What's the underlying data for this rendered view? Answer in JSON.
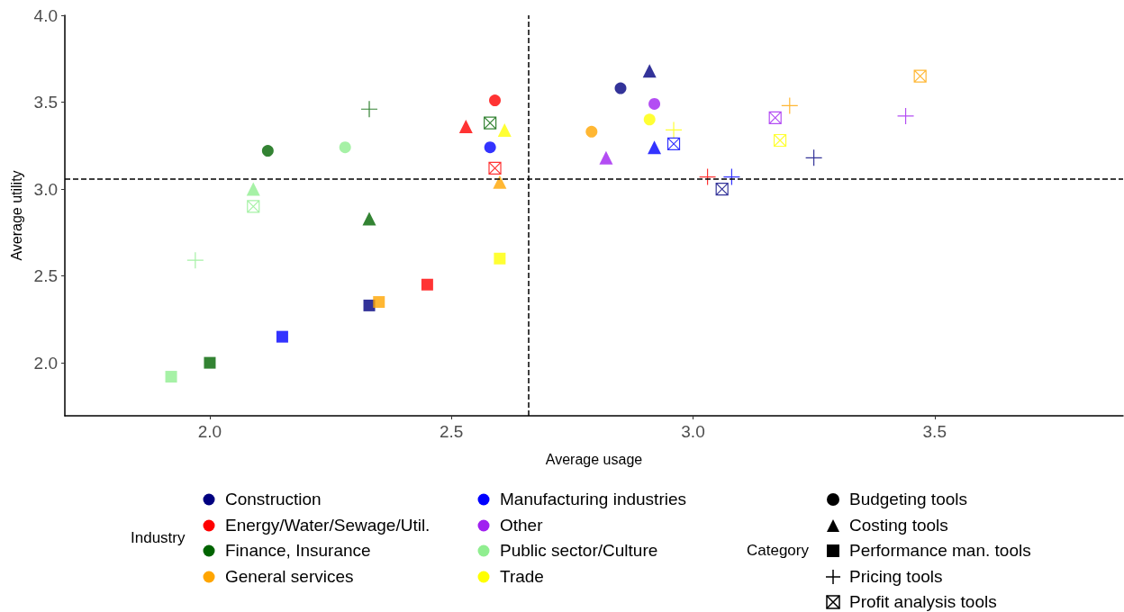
{
  "chart_data": {
    "type": "scatter",
    "xlabel": "Average usage",
    "ylabel": "Average utility",
    "xlim": [
      1.7,
      3.89
    ],
    "ylim": [
      1.695,
      4.0
    ],
    "xticks": [
      {
        "value": 2,
        "label": "2.0"
      },
      {
        "value": 2.5,
        "label": "2.5"
      },
      {
        "value": 3,
        "label": "3.0"
      },
      {
        "value": 3.5,
        "label": "3.5"
      }
    ],
    "yticks": [
      {
        "value": 2,
        "label": "2.0"
      },
      {
        "value": 2.5,
        "label": "2.5"
      },
      {
        "value": 3,
        "label": "3.0"
      },
      {
        "value": 3.5,
        "label": "3.5"
      },
      {
        "value": 4,
        "label": "4.0"
      }
    ],
    "grid": false,
    "annotations": [
      "Industry",
      "Construction",
      "Energy/Water/Sewage/Util.",
      "Finance, Insurance",
      "General services",
      "Manufacturing industries",
      "Other",
      "Public sector/Culture",
      "Trade",
      "Category",
      "Budgeting tools",
      "Costing tools",
      "Performance man. tools",
      "Pricing tools",
      "Profit analysis tools"
    ],
    "ref_lines": [
      {
        "axis": "x",
        "value": 2.66,
        "line_style": "dashed",
        "color": "#000000"
      },
      {
        "axis": "y",
        "value": 3.06,
        "line_style": "dashed",
        "color": "#000000"
      }
    ],
    "series": [
      {
        "color": "#000080",
        "marker": "circle",
        "x": [
          2.85
        ],
        "values": [
          3.58
        ]
      },
      {
        "color": "#ff0000",
        "marker": "circle",
        "x": [
          2.59
        ],
        "values": [
          3.51
        ]
      },
      {
        "color": "#006400",
        "marker": "circle",
        "x": [
          2.12
        ],
        "values": [
          3.22
        ]
      },
      {
        "color": "#ffa500",
        "marker": "circle",
        "x": [
          2.79
        ],
        "values": [
          3.33
        ]
      },
      {
        "color": "#0000ff",
        "marker": "circle",
        "x": [
          2.58
        ],
        "values": [
          3.24
        ]
      },
      {
        "color": "#a020f0",
        "marker": "circle",
        "x": [
          2.92
        ],
        "values": [
          3.49
        ]
      },
      {
        "color": "#90ee90",
        "marker": "circle",
        "x": [
          2.28
        ],
        "values": [
          3.24
        ]
      },
      {
        "color": "#ffff00",
        "marker": "circle",
        "x": [
          2.91
        ],
        "values": [
          3.4
        ]
      },
      {
        "color": "#000080",
        "marker": "triangle",
        "x": [
          2.91
        ],
        "values": [
          3.68
        ]
      },
      {
        "color": "#ff0000",
        "marker": "triangle",
        "x": [
          2.53
        ],
        "values": [
          3.36
        ]
      },
      {
        "color": "#006400",
        "marker": "triangle",
        "x": [
          2.33
        ],
        "values": [
          2.83
        ]
      },
      {
        "color": "#ffa500",
        "marker": "triangle",
        "x": [
          2.6
        ],
        "values": [
          3.04
        ]
      },
      {
        "color": "#0000ff",
        "marker": "triangle",
        "x": [
          2.92
        ],
        "values": [
          3.24
        ]
      },
      {
        "color": "#a020f0",
        "marker": "triangle",
        "x": [
          2.82
        ],
        "values": [
          3.18
        ]
      },
      {
        "color": "#90ee90",
        "marker": "triangle",
        "x": [
          2.09
        ],
        "values": [
          3.0
        ]
      },
      {
        "color": "#ffff00",
        "marker": "triangle",
        "x": [
          2.61
        ],
        "values": [
          3.34
        ]
      },
      {
        "color": "#000080",
        "marker": "square",
        "x": [
          2.33
        ],
        "values": [
          2.33
        ]
      },
      {
        "color": "#ff0000",
        "marker": "square",
        "x": [
          2.45
        ],
        "values": [
          2.45
        ]
      },
      {
        "color": "#006400",
        "marker": "square",
        "x": [
          2.0
        ],
        "values": [
          2.0
        ]
      },
      {
        "color": "#ffa500",
        "marker": "square",
        "x": [
          2.35
        ],
        "values": [
          2.35
        ]
      },
      {
        "color": "#0000ff",
        "marker": "square",
        "x": [
          2.15
        ],
        "values": [
          2.15
        ]
      },
      {
        "color": "#90ee90",
        "marker": "square",
        "x": [
          1.92
        ],
        "values": [
          1.92
        ]
      },
      {
        "color": "#ffff00",
        "marker": "square",
        "x": [
          2.6
        ],
        "values": [
          2.6
        ]
      },
      {
        "color": "#000080",
        "marker": "cross",
        "x": [
          3.25
        ],
        "values": [
          3.18
        ]
      },
      {
        "color": "#ff0000",
        "marker": "cross",
        "x": [
          3.03
        ],
        "values": [
          3.07
        ]
      },
      {
        "color": "#006400",
        "marker": "cross",
        "x": [
          2.33
        ],
        "values": [
          3.46
        ]
      },
      {
        "color": "#ffa500",
        "marker": "cross",
        "x": [
          3.2
        ],
        "values": [
          3.48
        ]
      },
      {
        "color": "#0000ff",
        "marker": "cross",
        "x": [
          3.08
        ],
        "values": [
          3.07
        ]
      },
      {
        "color": "#a020f0",
        "marker": "cross",
        "x": [
          3.44
        ],
        "values": [
          3.42
        ]
      },
      {
        "color": "#90ee90",
        "marker": "cross",
        "x": [
          1.97
        ],
        "values": [
          2.59
        ]
      },
      {
        "color": "#ffff00",
        "marker": "cross",
        "x": [
          2.96
        ],
        "values": [
          3.34
        ]
      },
      {
        "color": "#000080",
        "x": [
          3.06
        ],
        "values": [
          3.0
        ]
      },
      {
        "color": "#ff0000",
        "x": [
          2.59
        ],
        "values": [
          3.12
        ]
      },
      {
        "color": "#006400",
        "x": [
          2.58
        ],
        "values": [
          3.38
        ]
      },
      {
        "color": "#ffa500",
        "x": [
          3.47
        ],
        "values": [
          3.65
        ]
      },
      {
        "color": "#0000ff",
        "x": [
          2.96
        ],
        "values": [
          3.26
        ]
      },
      {
        "color": "#a020f0",
        "x": [
          3.17
        ],
        "values": [
          3.41
        ]
      },
      {
        "color": "#90ee90",
        "x": [
          2.09
        ],
        "values": [
          2.9
        ]
      },
      {
        "color": "#ffff00",
        "x": [
          3.18
        ],
        "values": [
          3.28
        ]
      }
    ]
  }
}
